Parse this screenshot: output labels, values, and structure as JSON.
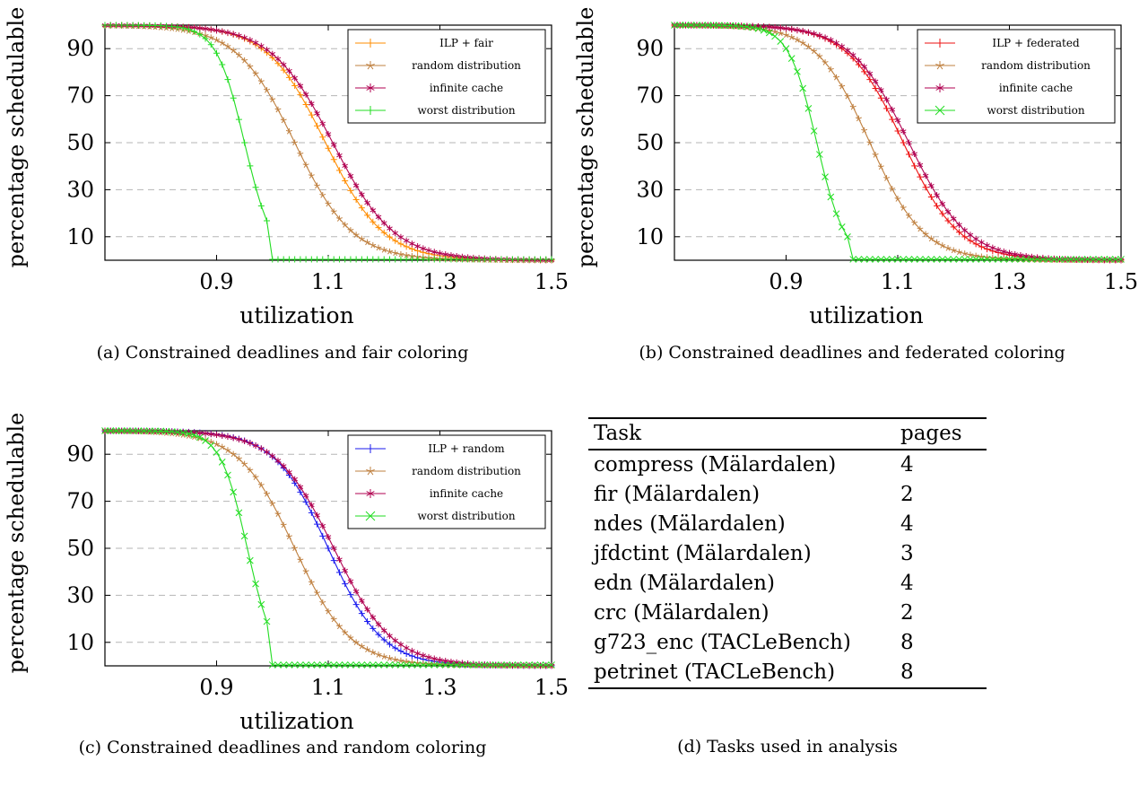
{
  "chart_data": [
    {
      "type": "line",
      "caption": "(a) Constrained deadlines and fair coloring",
      "xlabel": "utilization",
      "ylabel": "percentage schedulable",
      "xlim": [
        0.7,
        1.5
      ],
      "ylim": [
        0,
        100
      ],
      "xticks": [
        0.9,
        1.1,
        1.3,
        1.5
      ],
      "yticks": [
        10,
        30,
        50,
        70,
        90
      ],
      "grid": "horizontal-dashed",
      "legend_position": "top-right",
      "series": [
        {
          "name": "ILP + fair",
          "color": "#ff8c00",
          "marker": "plus",
          "mid": 1.095,
          "scale": 0.052
        },
        {
          "name": "random distribution",
          "color": "#bf8040",
          "marker": "star",
          "mid": 1.04,
          "scale": 0.052
        },
        {
          "name": "infinite cache",
          "color": "#b00050",
          "marker": "asterisk",
          "mid": 1.108,
          "scale": 0.055
        },
        {
          "name": "worst distribution",
          "color": "#22dd22",
          "marker": "plus",
          "mid": 0.95,
          "scale": 0.025,
          "cutoff": 1.0
        }
      ]
    },
    {
      "type": "line",
      "caption": "(b) Constrained deadlines and federated coloring",
      "xlabel": "utilization",
      "ylabel": "percentage schedulable",
      "xlim": [
        0.7,
        1.5
      ],
      "ylim": [
        0,
        100
      ],
      "xticks": [
        0.9,
        1.1,
        1.3,
        1.5
      ],
      "yticks": [
        10,
        30,
        50,
        70,
        90
      ],
      "grid": "horizontal-dashed",
      "legend_position": "top-right",
      "series": [
        {
          "name": "ILP + federated",
          "color": "#ee1111",
          "marker": "plus",
          "mid": 1.11,
          "scale": 0.05
        },
        {
          "name": "random distribution",
          "color": "#bf8040",
          "marker": "star",
          "mid": 1.05,
          "scale": 0.048
        },
        {
          "name": "infinite cache",
          "color": "#b00050",
          "marker": "asterisk",
          "mid": 1.12,
          "scale": 0.052
        },
        {
          "name": "worst distribution",
          "color": "#22dd22",
          "marker": "cross",
          "mid": 0.955,
          "scale": 0.025,
          "cutoff": 1.02
        }
      ]
    },
    {
      "type": "line",
      "caption": "(c) Constrained deadlines and random coloring",
      "xlabel": "utilization",
      "ylabel": "percentage schedulable",
      "xlim": [
        0.7,
        1.5
      ],
      "ylim": [
        0,
        100
      ],
      "xticks": [
        0.9,
        1.1,
        1.3,
        1.5
      ],
      "yticks": [
        10,
        30,
        50,
        70,
        90
      ],
      "grid": "horizontal-dashed",
      "legend_position": "top-right",
      "series": [
        {
          "name": "ILP + random",
          "color": "#1a1aee",
          "marker": "plus",
          "mid": 1.1,
          "scale": 0.048
        },
        {
          "name": "random distribution",
          "color": "#bf8040",
          "marker": "star",
          "mid": 1.04,
          "scale": 0.05
        },
        {
          "name": "infinite cache",
          "color": "#b00050",
          "marker": "asterisk",
          "mid": 1.11,
          "scale": 0.052
        },
        {
          "name": "worst distribution",
          "color": "#22dd22",
          "marker": "cross",
          "mid": 0.955,
          "scale": 0.024,
          "cutoff": 1.0
        }
      ]
    }
  ],
  "table": {
    "caption": "(d) Tasks used in analysis",
    "headers": [
      "Task",
      "pages"
    ],
    "rows": [
      [
        "compress (Mälardalen)",
        "4"
      ],
      [
        "fir (Mälardalen)",
        "2"
      ],
      [
        "ndes (Mälardalen)",
        "4"
      ],
      [
        "jfdctint (Mälardalen)",
        "3"
      ],
      [
        "edn (Mälardalen)",
        "4"
      ],
      [
        "crc (Mälardalen)",
        "2"
      ],
      [
        "g723_enc (TACLeBench)",
        "8"
      ],
      [
        "petrinet (TACLeBench)",
        "8"
      ]
    ]
  }
}
